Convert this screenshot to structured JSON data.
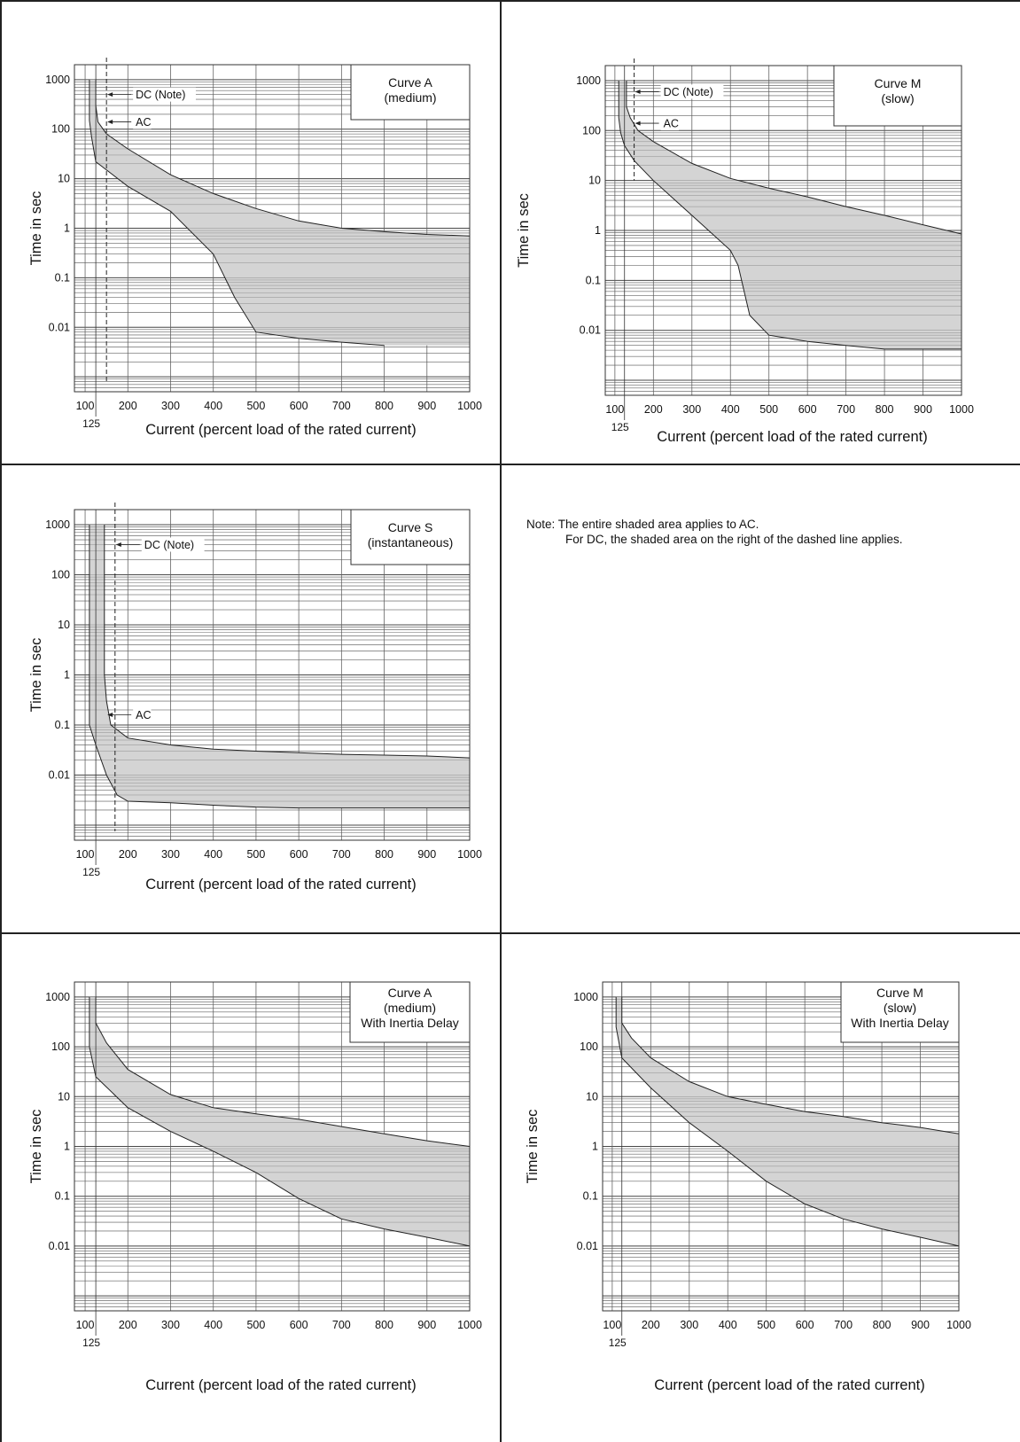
{
  "note": {
    "line1": "Note: The entire shaded area applies to AC.",
    "line2": "For DC, the shaded area on the right of the dashed line applies."
  },
  "chart_data": [
    {
      "type": "area",
      "id": "curve-a",
      "title": "Curve A",
      "subtitle": "(medium)",
      "xlabel": "Current (percent load of the rated current)",
      "ylabel": "Time in sec",
      "x_ticks": [
        100,
        200,
        300,
        400,
        500,
        600,
        700,
        800,
        900,
        1000
      ],
      "extra_x_tick": 125,
      "y_ticks": [
        1000,
        100,
        10,
        1,
        0.1,
        0.01
      ],
      "y_ticklabels": [
        "1000",
        "100",
        "10",
        "1",
        "0.1",
        "0.01"
      ],
      "xlim": [
        0,
        1000
      ],
      "ylim": [
        0.0005,
        2000
      ],
      "y_scale": "log",
      "grid": true,
      "series": [
        {
          "name": "",
          "x": [
            125,
            125,
            130,
            150,
            200,
            300,
            400,
            500,
            600,
            700,
            800,
            900,
            1000
          ],
          "y": [
            1000,
            300,
            140,
            80,
            40,
            12,
            5,
            2.5,
            1.4,
            1.0,
            0.85,
            0.75,
            0.7
          ]
        },
        {
          "name": "",
          "x": [
            110,
            110,
            115,
            125,
            200,
            300,
            400,
            450,
            500,
            600,
            700,
            800
          ],
          "y": [
            1000,
            150,
            70,
            22,
            7,
            2.2,
            0.3,
            0.04,
            0.008,
            0.006,
            0.005,
            0.0043
          ]
        }
      ],
      "shade_right_x": 1000,
      "dc_line_x": 150,
      "ac_line_x": 125,
      "annotations": [
        {
          "text": "DC (Note)",
          "x": 150,
          "y": 500
        },
        {
          "text": "AC",
          "x": 150,
          "y": 140
        }
      ]
    },
    {
      "type": "area",
      "id": "curve-m",
      "title": "Curve M",
      "subtitle": "(slow)",
      "xlabel": "Current (percent load of the rated current)",
      "ylabel": "Time in sec",
      "x_ticks": [
        100,
        200,
        300,
        400,
        500,
        600,
        700,
        800,
        900,
        1000
      ],
      "extra_x_tick": 125,
      "y_ticks": [
        1000,
        100,
        10,
        1,
        0.1,
        0.01
      ],
      "y_ticklabels": [
        "1000",
        "100",
        "10",
        "1",
        "0.1",
        "0.01"
      ],
      "xlim": [
        0,
        1000
      ],
      "ylim": [
        0.0005,
        2000
      ],
      "y_scale": "log",
      "grid": true,
      "series": [
        {
          "name": "",
          "x": [
            130,
            130,
            140,
            160,
            200,
            300,
            400,
            500,
            600,
            700,
            800,
            900,
            1000
          ],
          "y": [
            1000,
            300,
            180,
            100,
            60,
            22,
            11,
            7,
            4.7,
            3,
            2,
            1.3,
            0.85
          ]
        },
        {
          "name": "",
          "x": [
            110,
            110,
            115,
            125,
            150,
            200,
            300,
            400,
            420,
            450,
            500,
            600,
            700,
            800,
            900,
            1000
          ],
          "y": [
            1000,
            180,
            90,
            50,
            25,
            10,
            2,
            0.4,
            0.2,
            0.02,
            0.008,
            0.006,
            0.005,
            0.0042,
            0.0042,
            0.0042
          ]
        }
      ],
      "shade_right_x": 1000,
      "dc_line_x": 150,
      "ac_line_x": 125,
      "annotations": [
        {
          "text": "DC (Note)",
          "x": 150,
          "y": 600
        },
        {
          "text": "AC",
          "x": 150,
          "y": 140
        }
      ]
    },
    {
      "type": "area",
      "id": "curve-s",
      "title": "Curve S",
      "subtitle": "(instantaneous)",
      "xlabel": "Current (percent load of the rated current)",
      "ylabel": "Time in sec",
      "x_ticks": [
        100,
        200,
        300,
        400,
        500,
        600,
        700,
        800,
        900,
        1000
      ],
      "extra_x_tick": 125,
      "y_ticks": [
        1000,
        100,
        10,
        1,
        0.1,
        0.01
      ],
      "y_ticklabels": [
        "1000",
        "100",
        "10",
        "1",
        "0.1",
        "0.01"
      ],
      "xlim": [
        0,
        1000
      ],
      "ylim": [
        0.0005,
        2000
      ],
      "y_scale": "log",
      "grid": true,
      "series": [
        {
          "name": "",
          "x": [
            145,
            145,
            150,
            160,
            200,
            300,
            400,
            500,
            600,
            700,
            800,
            900,
            1000
          ],
          "y": [
            1000,
            1,
            0.3,
            0.1,
            0.055,
            0.04,
            0.033,
            0.03,
            0.028,
            0.026,
            0.025,
            0.024,
            0.022
          ]
        },
        {
          "name": "",
          "x": [
            110,
            110,
            125,
            150,
            175,
            200,
            300,
            400,
            500,
            600,
            700,
            800,
            900,
            1000
          ],
          "y": [
            1000,
            0.1,
            0.04,
            0.01,
            0.004,
            0.003,
            0.0028,
            0.0025,
            0.0023,
            0.0022,
            0.0022,
            0.0022,
            0.0022,
            0.0022
          ]
        }
      ],
      "shade_right_x": 1000,
      "dc_line_x": 170,
      "ac_line_x": 150,
      "annotations": [
        {
          "text": "DC (Note)",
          "x": 170,
          "y": 400
        },
        {
          "text": "AC",
          "x": 150,
          "y": 0.16
        }
      ]
    },
    {
      "type": "area",
      "id": "curve-a-inertia",
      "title": "Curve A",
      "subtitle": "(medium)",
      "subtitle2": "With Inertia Delay",
      "xlabel": "Current (percent load of the rated current)",
      "ylabel": "Time in sec",
      "x_ticks": [
        100,
        200,
        300,
        400,
        500,
        600,
        700,
        800,
        900,
        1000
      ],
      "extra_x_tick": 125,
      "y_ticks": [
        1000,
        100,
        10,
        1,
        0.1,
        0.01
      ],
      "y_ticklabels": [
        "1000",
        "100",
        "10",
        "1",
        "0.1",
        "0.01"
      ],
      "xlim": [
        0,
        1000
      ],
      "ylim": [
        0.0005,
        2000
      ],
      "y_scale": "log",
      "grid": true,
      "series": [
        {
          "name": "",
          "x": [
            125,
            125,
            150,
            200,
            300,
            400,
            500,
            600,
            700,
            800,
            900,
            1000
          ],
          "y": [
            1000,
            300,
            120,
            35,
            11,
            6,
            4.5,
            3.5,
            2.5,
            1.8,
            1.3,
            1
          ]
        },
        {
          "name": "",
          "x": [
            110,
            110,
            125,
            200,
            300,
            400,
            500,
            600,
            700,
            800,
            900,
            1000
          ],
          "y": [
            1000,
            100,
            25,
            6,
            2,
            0.8,
            0.3,
            0.09,
            0.035,
            0.022,
            0.015,
            0.01
          ]
        }
      ],
      "shade_right_x": 1000,
      "dc_line_x": null,
      "ac_line_x": 125,
      "annotations": []
    },
    {
      "type": "area",
      "id": "curve-m-inertia",
      "title": "Curve M",
      "subtitle": "(slow)",
      "subtitle2": "With Inertia Delay",
      "xlabel": "Current (percent load of the rated current)",
      "ylabel": "Time in sec",
      "x_ticks": [
        100,
        200,
        300,
        400,
        500,
        600,
        700,
        800,
        900,
        1000
      ],
      "extra_x_tick": 125,
      "y_ticks": [
        1000,
        100,
        10,
        1,
        0.1,
        0.01
      ],
      "y_ticklabels": [
        "1000",
        "100",
        "10",
        "1",
        "0.1",
        "0.01"
      ],
      "xlim": [
        0,
        1000
      ],
      "ylim": [
        0.0005,
        2000
      ],
      "y_scale": "log",
      "grid": true,
      "series": [
        {
          "name": "",
          "x": [
            125,
            125,
            150,
            200,
            300,
            400,
            500,
            600,
            700,
            800,
            900,
            1000
          ],
          "y": [
            1000,
            300,
            150,
            60,
            20,
            10,
            7,
            5,
            4,
            3,
            2.4,
            1.8
          ]
        },
        {
          "name": "",
          "x": [
            110,
            110,
            125,
            200,
            300,
            400,
            500,
            600,
            700,
            800,
            900,
            1000
          ],
          "y": [
            1000,
            250,
            60,
            15,
            3,
            0.8,
            0.2,
            0.07,
            0.035,
            0.022,
            0.015,
            0.01
          ]
        }
      ],
      "shade_right_x": 1000,
      "dc_line_x": null,
      "ac_line_x": 125,
      "annotations": []
    }
  ]
}
